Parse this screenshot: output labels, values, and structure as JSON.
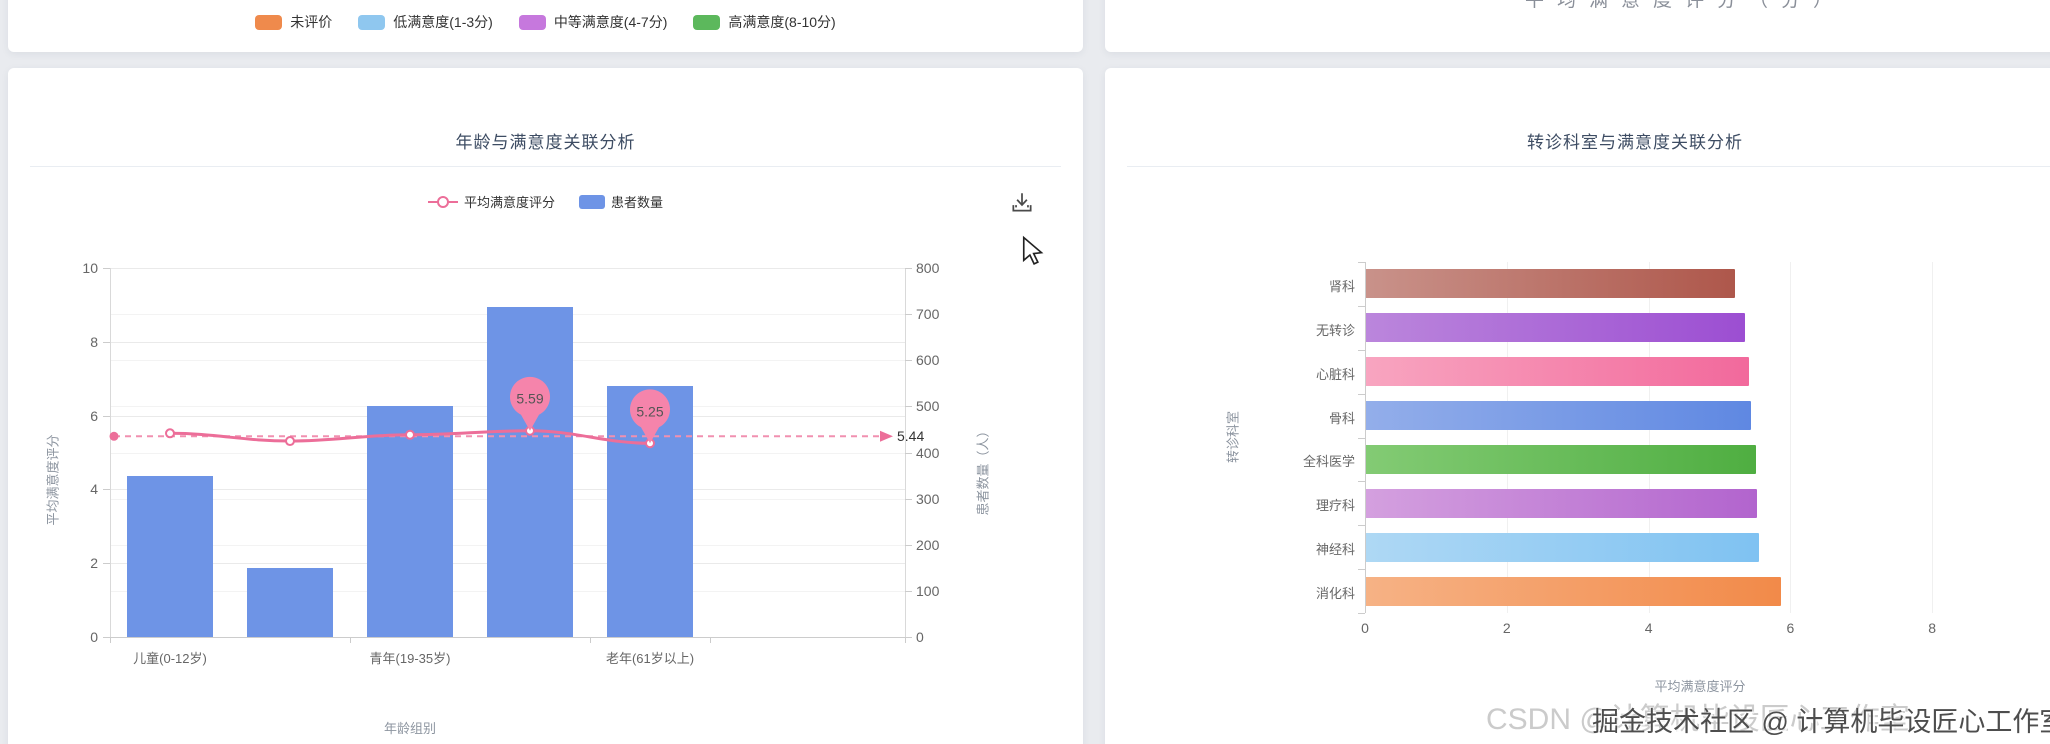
{
  "legend_card": {
    "items": [
      {
        "label": "未评价",
        "color": "#EF8A4C"
      },
      {
        "label": "低满意度(1-3分)",
        "color": "#8FC7EF"
      },
      {
        "label": "中等满意度(4-7分)",
        "color": "#C678DD"
      },
      {
        "label": "高满意度(8-10分)",
        "color": "#5CB85C"
      }
    ]
  },
  "top_right_card": {
    "clipped_label": "平均满意度评分（分）"
  },
  "chart_data": [
    {
      "type": "bar+line",
      "title": "年龄与满意度关联分析",
      "categories": [
        "儿童(0-12岁)",
        "",
        "青年(19-35岁)",
        "",
        "老年(61岁以上)"
      ],
      "visible_category_labels": [
        "儿童(0-12岁)",
        "青年(19-35岁)",
        "老年(61岁以上)"
      ],
      "xlabel": "年龄组别",
      "ylabel_left": "平均满意度评分",
      "ylabel_right": "患者数量（人）",
      "ylim_left": [
        0,
        10
      ],
      "ylim_right": [
        0,
        800
      ],
      "yticks_left": [
        0,
        2,
        4,
        6,
        8,
        10
      ],
      "yticks_right": [
        0,
        100,
        200,
        300,
        400,
        500,
        600,
        700,
        800
      ],
      "grid": true,
      "legend_position": "top",
      "series": [
        {
          "name": "患者数量",
          "type": "bar",
          "yaxis": "right",
          "color": "#6E94E6",
          "values": [
            350,
            150,
            500,
            715,
            545
          ]
        },
        {
          "name": "平均满意度评分",
          "type": "line",
          "yaxis": "left",
          "color": "#EC6E99",
          "values": [
            5.52,
            5.31,
            5.48,
            5.59,
            5.25
          ],
          "point_labels": [
            {
              "index": 3,
              "label": "5.59"
            },
            {
              "index": 4,
              "label": "5.25"
            }
          ],
          "average_line": {
            "value": 5.44,
            "label": "5.44"
          }
        }
      ]
    },
    {
      "type": "bar",
      "orientation": "horizontal",
      "title": "转诊科室与满意度关联分析",
      "categories": [
        "肾科",
        "无转诊",
        "心脏科",
        "骨科",
        "全科医学",
        "理疗科",
        "神经科",
        "消化科"
      ],
      "values": [
        5.2,
        5.35,
        5.4,
        5.43,
        5.5,
        5.52,
        5.54,
        5.85
      ],
      "bar_colors": [
        [
          "#C9928A",
          "#AE574B"
        ],
        [
          "#BB86DC",
          "#9C4ED2"
        ],
        [
          "#F8A5C0",
          "#F2699C"
        ],
        [
          "#93AEEA",
          "#5F88E2"
        ],
        [
          "#83CB74",
          "#4FAE41"
        ],
        [
          "#D4A0DF",
          "#B264CE"
        ],
        [
          "#AED8F4",
          "#7FC2F2"
        ],
        [
          "#F6B285",
          "#F28A49"
        ]
      ],
      "xlabel": "平均满意度评分",
      "ylabel": "转诊科室",
      "xlim": [
        0,
        10
      ],
      "xticks": [
        0,
        2,
        4,
        6,
        8
      ],
      "grid": true
    }
  ],
  "watermark": {
    "light": "CSDN @计算机毕设匠心工作室",
    "dark": "掘金技术社区 @ 计算机毕设匠心工作室"
  }
}
